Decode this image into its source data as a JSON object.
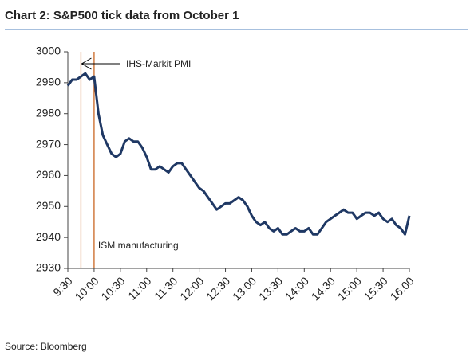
{
  "chart_data": {
    "type": "line",
    "title": "Chart 2: S&P500 tick data from October 1",
    "source": "Source: Bloomberg",
    "x": [
      "9:30",
      "9:35",
      "9:40",
      "9:45",
      "9:50",
      "9:55",
      "10:00",
      "10:05",
      "10:10",
      "10:15",
      "10:20",
      "10:25",
      "10:30",
      "10:35",
      "10:40",
      "10:45",
      "10:50",
      "10:55",
      "11:00",
      "11:05",
      "11:10",
      "11:15",
      "11:20",
      "11:25",
      "11:30",
      "11:35",
      "11:40",
      "11:45",
      "11:50",
      "11:55",
      "12:00",
      "12:05",
      "12:10",
      "12:15",
      "12:20",
      "12:25",
      "12:30",
      "12:35",
      "12:40",
      "12:45",
      "12:50",
      "12:55",
      "13:00",
      "13:05",
      "13:10",
      "13:15",
      "13:20",
      "13:25",
      "13:30",
      "13:35",
      "13:40",
      "13:45",
      "13:50",
      "13:55",
      "14:00",
      "14:05",
      "14:10",
      "14:15",
      "14:20",
      "14:25",
      "14:30",
      "14:35",
      "14:40",
      "14:45",
      "14:50",
      "14:55",
      "15:00",
      "15:05",
      "15:10",
      "15:15",
      "15:20",
      "15:25",
      "15:30",
      "15:35",
      "15:40",
      "15:45",
      "15:50",
      "15:55",
      "16:00"
    ],
    "values": [
      2989,
      2991,
      2991,
      2992,
      2993,
      2991,
      2992,
      2980,
      2973,
      2970,
      2967,
      2966,
      2967,
      2971,
      2972,
      2971,
      2971,
      2969,
      2966,
      2962,
      2962,
      2963,
      2962,
      2961,
      2963,
      2964,
      2964,
      2962,
      2960,
      2958,
      2956,
      2955,
      2953,
      2951,
      2949,
      2950,
      2951,
      2951,
      2952,
      2953,
      2952,
      2950,
      2947,
      2945,
      2944,
      2945,
      2943,
      2942,
      2943,
      2941,
      2941,
      2942,
      2943,
      2942,
      2942,
      2943,
      2941,
      2941,
      2943,
      2945,
      2946,
      2947,
      2948,
      2949,
      2948,
      2948,
      2946,
      2947,
      2948,
      2948,
      2947,
      2948,
      2946,
      2945,
      2946,
      2944,
      2943,
      2941,
      2947
    ],
    "color": "#1f3864",
    "xlim": [
      "9:30",
      "16:00"
    ],
    "xticks": [
      "9:30",
      "10:00",
      "10:30",
      "11:00",
      "11:30",
      "12:00",
      "12:30",
      "13:00",
      "13:30",
      "14:00",
      "14:30",
      "15:00",
      "15:30",
      "16:00"
    ],
    "ylim": [
      2930,
      3000
    ],
    "yticks": [
      2930,
      2940,
      2950,
      2960,
      2970,
      2980,
      2990,
      3000
    ],
    "events": [
      {
        "x": "9:45",
        "label": "IHS-Markit PMI",
        "color": "#c55a11"
      },
      {
        "x": "10:00",
        "label": "ISM manufacturing",
        "color": "#c55a11"
      }
    ]
  }
}
